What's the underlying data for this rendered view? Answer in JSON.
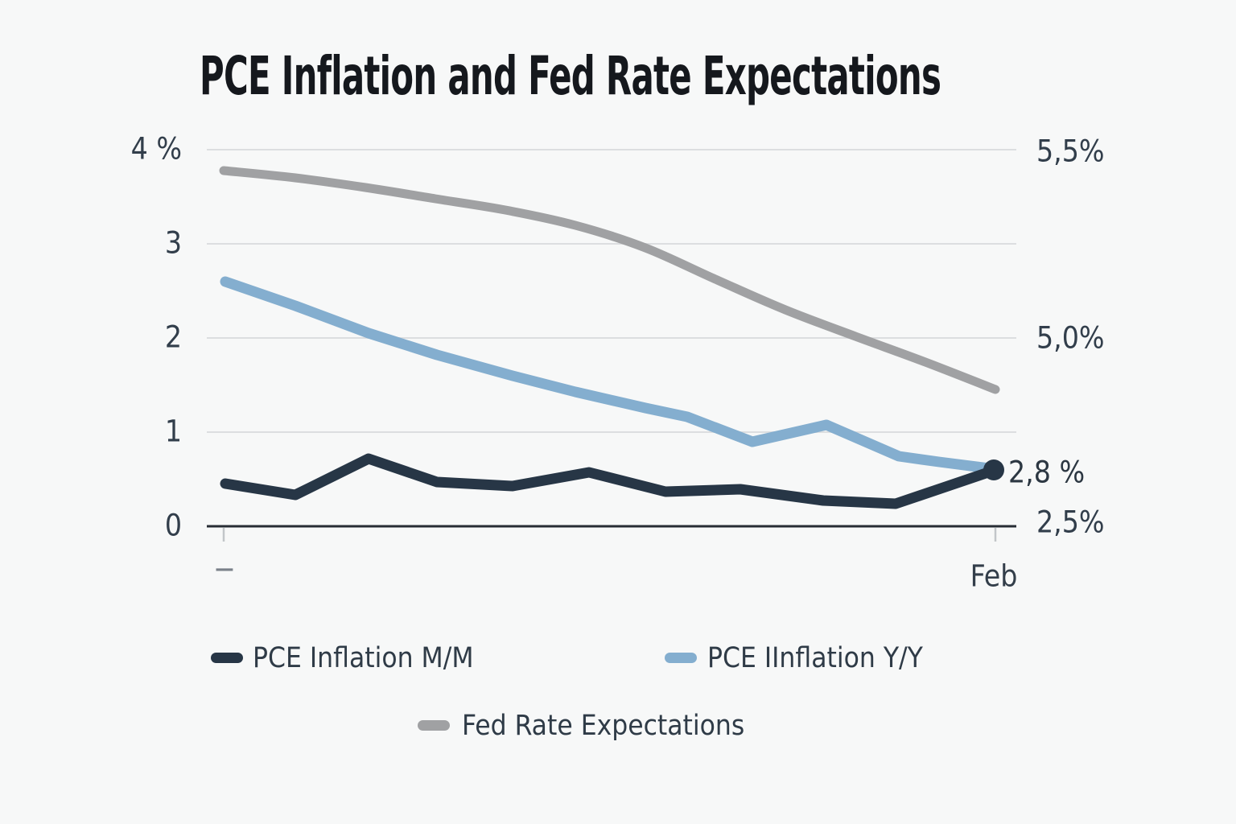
{
  "title": "PCE Inflation and Fed Rate Expectations",
  "background": "#f7f8f8",
  "colors": {
    "grid": "#dcdee0",
    "axis": "#272d34",
    "tick": "#c2c6c9",
    "text": "#323e4b",
    "title_text": "#15181d"
  },
  "chart_data": {
    "type": "line",
    "title": "PCE Inflation and Fed Rate Expectations",
    "x_axis": {
      "tick_labels": [
        "−",
        "Feb"
      ],
      "tick_positions": [
        0.0,
        1.0
      ]
    },
    "y_axis_left": {
      "tick_labels": [
        "0",
        "1",
        "2",
        "3",
        "4 %"
      ],
      "tick_values": [
        0,
        1,
        2,
        3,
        4
      ],
      "range": [
        0,
        4
      ],
      "grid": true
    },
    "y_axis_right": {
      "tick_labels": [
        "5,5%",
        "5,0%",
        "2,5%"
      ],
      "positions_left_scale": [
        4.0,
        2.0,
        0.04
      ]
    },
    "annotation": {
      "text": "2,8 %",
      "series": "PCE Inflation M/M",
      "value_left_scale": 0.59
    },
    "series": [
      {
        "name": "PCE Inflation M/M",
        "color": "#273646",
        "width": 13,
        "end_dot": true,
        "dot_radius": 13,
        "points": [
          [
            0.002,
            0.45
          ],
          [
            0.093,
            0.33
          ],
          [
            0.188,
            0.72
          ],
          [
            0.276,
            0.47
          ],
          [
            0.374,
            0.43
          ],
          [
            0.473,
            0.575
          ],
          [
            0.572,
            0.37
          ],
          [
            0.669,
            0.39
          ],
          [
            0.777,
            0.27
          ],
          [
            0.871,
            0.24
          ],
          [
            1.0,
            0.6
          ]
        ]
      },
      {
        "name": "PCE IInflation Y/Y",
        "color": "#84aecf",
        "width": 13,
        "points": [
          [
            0.002,
            2.6
          ],
          [
            0.093,
            2.34
          ],
          [
            0.188,
            2.05
          ],
          [
            0.276,
            1.82
          ],
          [
            0.374,
            1.6
          ],
          [
            0.456,
            1.43
          ],
          [
            0.546,
            1.26
          ],
          [
            0.601,
            1.16
          ],
          [
            0.685,
            0.9
          ],
          [
            0.781,
            1.08
          ],
          [
            0.875,
            0.74
          ],
          [
            0.927,
            0.68
          ],
          [
            1.0,
            0.61
          ]
        ]
      },
      {
        "name": "Fed Rate Expectations",
        "color": "#a0a1a3",
        "width": 11,
        "smooth": true,
        "points": [
          [
            0.0,
            3.78
          ],
          [
            0.093,
            3.7
          ],
          [
            0.184,
            3.6
          ],
          [
            0.274,
            3.48
          ],
          [
            0.365,
            3.36
          ],
          [
            0.456,
            3.2
          ],
          [
            0.546,
            2.96
          ],
          [
            0.637,
            2.62
          ],
          [
            0.728,
            2.3
          ],
          [
            0.819,
            2.02
          ],
          [
            0.909,
            1.74
          ],
          [
            1.0,
            1.45
          ]
        ]
      }
    ],
    "legend_rows": [
      [
        "PCE Inflation M/M",
        "PCE IInflation Y/Y"
      ],
      [
        "Fed Rate Expectations"
      ]
    ]
  }
}
